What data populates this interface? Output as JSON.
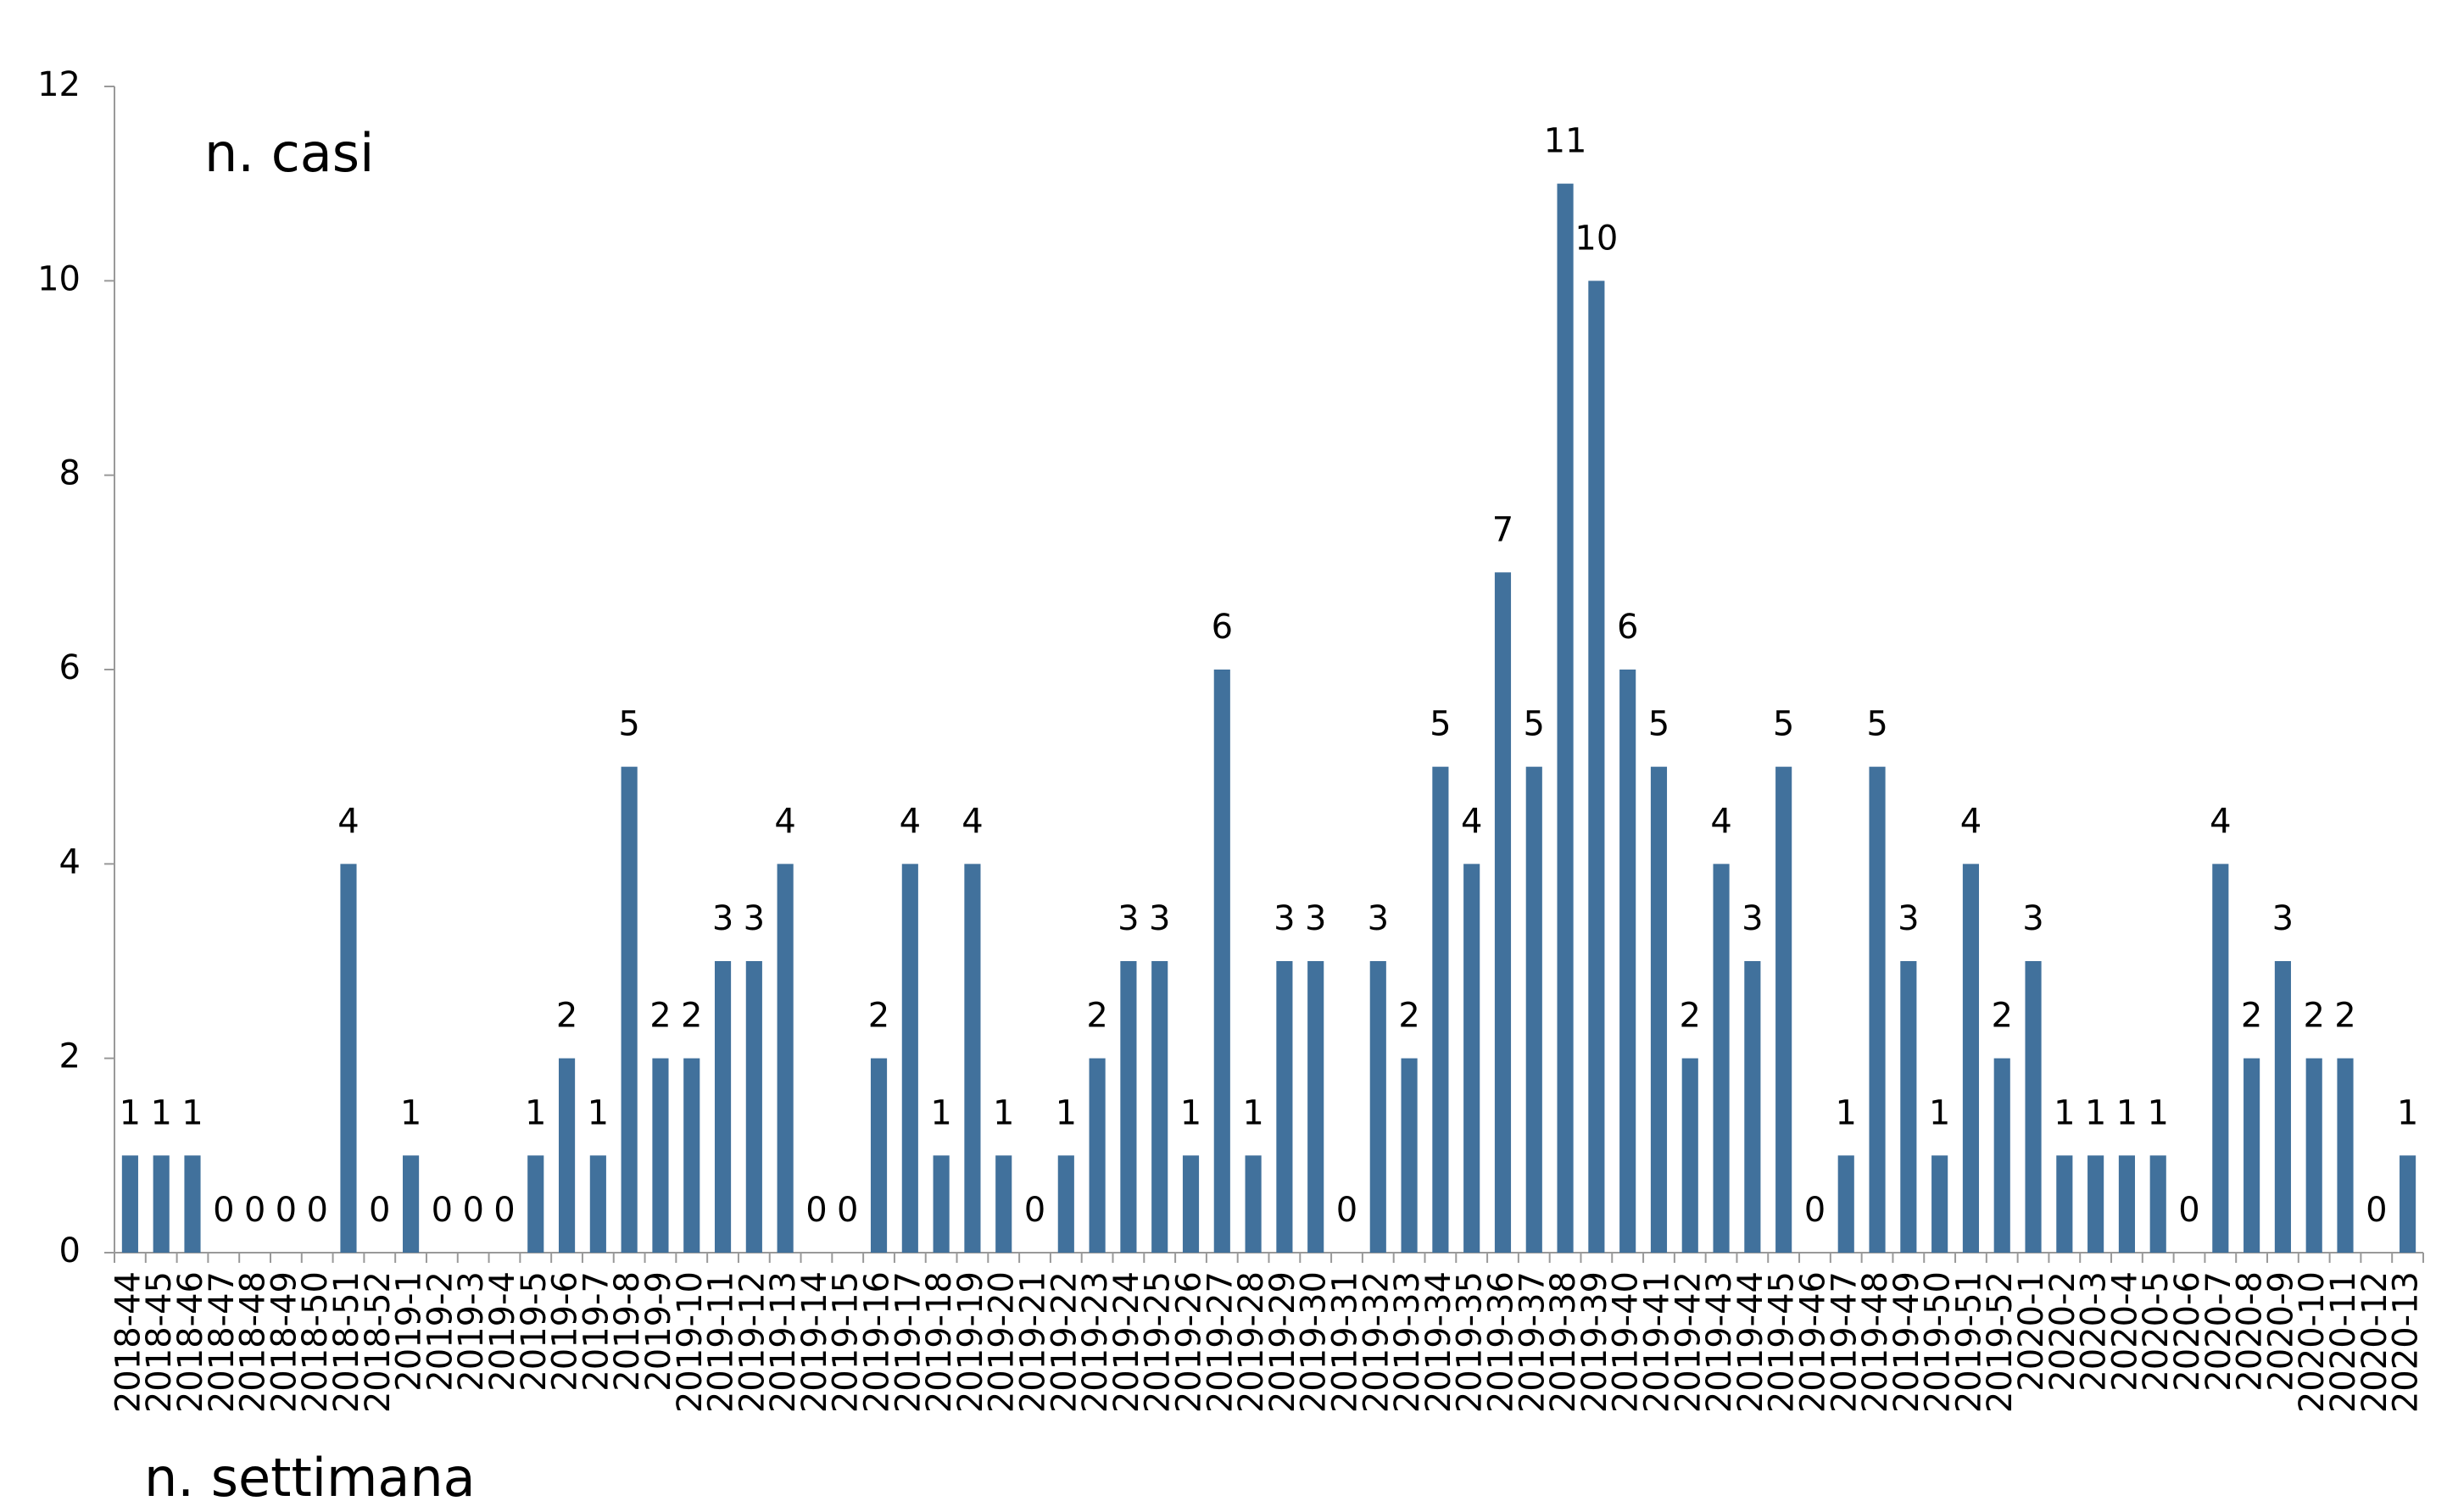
{
  "chart_data": {
    "type": "bar",
    "ylabel": "n. casi",
    "xlabel": "n. settimana",
    "categories": [
      "2018-44",
      "2018-45",
      "2018-46",
      "2018-47",
      "2018-48",
      "2018-49",
      "2018-50",
      "2018-51",
      "2018-52",
      "2019-1",
      "2019-2",
      "2019-3",
      "2019-4",
      "2019-5",
      "2019-6",
      "2019-7",
      "2019-8",
      "2019-9",
      "2019-10",
      "2019-11",
      "2019-12",
      "2019-13",
      "2019-14",
      "2019-15",
      "2019-16",
      "2019-17",
      "2019-18",
      "2019-19",
      "2019-20",
      "2019-21",
      "2019-22",
      "2019-23",
      "2019-24",
      "2019-25",
      "2019-26",
      "2019-27",
      "2019-28",
      "2019-29",
      "2019-30",
      "2019-31",
      "2019-32",
      "2019-33",
      "2019-34",
      "2019-35",
      "2019-36",
      "2019-37",
      "2019-38",
      "2019-39",
      "2019-40",
      "2019-41",
      "2019-42",
      "2019-43",
      "2019-44",
      "2019-45",
      "2019-46",
      "2019-47",
      "2019-48",
      "2019-49",
      "2019-50",
      "2019-51",
      "2019-52",
      "2020-1",
      "2020-2",
      "2020-3",
      "2020-4",
      "2020-5",
      "2020-6",
      "2020-7",
      "2020-8",
      "2020-9",
      "2020-10",
      "2020-11",
      "2020-12",
      "2020-13"
    ],
    "values": [
      1,
      1,
      1,
      0,
      0,
      0,
      0,
      4,
      0,
      1,
      0,
      0,
      0,
      1,
      2,
      1,
      5,
      2,
      2,
      3,
      3,
      4,
      0,
      0,
      2,
      4,
      1,
      4,
      1,
      0,
      1,
      2,
      3,
      3,
      1,
      6,
      1,
      3,
      3,
      0,
      3,
      2,
      5,
      4,
      7,
      5,
      11,
      10,
      6,
      5,
      2,
      4,
      3,
      5,
      0,
      1,
      5,
      3,
      1,
      4,
      2,
      3,
      1,
      1,
      1,
      1,
      0,
      4,
      2,
      3,
      2,
      2,
      0,
      1
    ],
    "color": "#41719c",
    "ylim": [
      0,
      12
    ],
    "yticks": [
      0,
      2,
      4,
      6,
      8,
      10,
      12
    ],
    "grid": false
  }
}
